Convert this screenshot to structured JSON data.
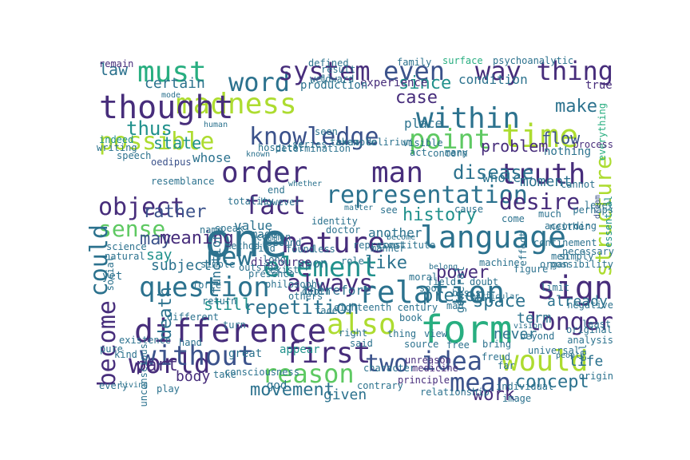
{
  "palette": [
    "#440154",
    "#472d7b",
    "#3b528b",
    "#2c728e",
    "#21918c",
    "#28ae80",
    "#5ec962",
    "#addc30",
    "#fde725"
  ],
  "word_cloud": {
    "words": [
      "one",
      "madness",
      "language",
      "form",
      "difference",
      "representation",
      "relation",
      "thought",
      "would",
      "nature",
      "first",
      "knowledge",
      "order",
      "object",
      "must",
      "word",
      "system",
      "even",
      "way",
      "thing",
      "time",
      "possible",
      "within",
      "point",
      "man",
      "truth",
      "fact",
      "sense",
      "could",
      "element",
      "question",
      "also",
      "world",
      "without",
      "reason",
      "two",
      "idea",
      "mean",
      "sign",
      "always",
      "become",
      "new",
      "desire",
      "structure",
      "history",
      "longer",
      "repetition",
      "movement",
      "concept",
      "work",
      "like",
      "death",
      "may",
      "meaning",
      "rather",
      "made",
      "value",
      "function",
      "since",
      "case",
      "make",
      "flow",
      "state",
      "certain",
      "thus",
      "whose",
      "law",
      "experience",
      "production",
      "condition",
      "place",
      "problem",
      "disease",
      "whole",
      "moment",
      "power",
      "upon",
      "therefore",
      "another",
      "space",
      "present",
      "still",
      "part",
      "body",
      "great",
      "god",
      "given",
      "appear",
      "never",
      "life",
      "term",
      "already",
      "general",
      "subject",
      "say",
      "yet",
      "true",
      "nothing",
      "everything",
      "cannot",
      "process",
      "level",
      "dream",
      "essential",
      "perhaps",
      "according",
      "much",
      "come",
      "cause",
      "see",
      "however",
      "end",
      "find",
      "discourse",
      "presence",
      "force",
      "take",
      "play",
      "consciousness",
      "individual",
      "origin",
      "real",
      "analysis",
      "image",
      "relationship",
      "freud",
      "mad",
      "far",
      "said",
      "character",
      "principle",
      "medicine",
      "unreason",
      "contrary",
      "book",
      "eighteenth century",
      "return",
      "turn",
      "different",
      "hand",
      "kind",
      "every",
      "unconscious",
      "existence",
      "pure",
      "science",
      "social",
      "speak",
      "long",
      "found",
      "less",
      "exist",
      "second",
      "simple",
      "totality",
      "natural",
      "indeed",
      "speech",
      "writing",
      "remain",
      "oedipus",
      "resemblance",
      "hospital",
      "result",
      "surface",
      "psychoanalytic",
      "family",
      "defined",
      "example",
      "taken",
      "delirium",
      "visible",
      "concern",
      "act",
      "many",
      "toward",
      "well",
      "seen",
      "determination",
      "series",
      "identity",
      "role",
      "constitute",
      "outside",
      "method",
      "name",
      "confinement",
      "effect",
      "neither",
      "organ",
      "necessary",
      "figure",
      "limit",
      "simply",
      "possibility",
      "men",
      "moral",
      "doubt",
      "machine",
      "field",
      "basis",
      "soon",
      "others",
      "common",
      "doctor",
      "depth",
      "manner",
      "represent",
      "philosophy",
      "face",
      "right",
      "thing",
      "view",
      "source",
      "free",
      "bring",
      "beyond",
      "universal",
      "original",
      "least",
      "negative",
      "matter",
      "become",
      "belong",
      "particular",
      "vision",
      "people",
      "living",
      "mode",
      "human",
      "known",
      "whether"
    ]
  }
}
